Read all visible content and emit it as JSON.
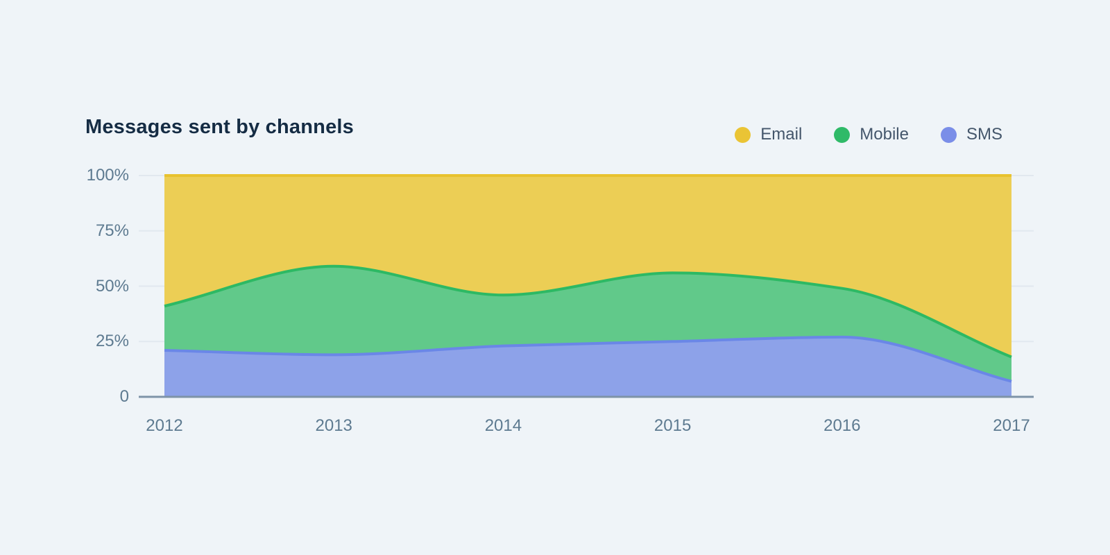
{
  "title": "Messages sent by channels",
  "legend": {
    "items": [
      {
        "label": "Email",
        "color": "#EAC435"
      },
      {
        "label": "Mobile",
        "color": "#2FBA68"
      },
      {
        "label": "SMS",
        "color": "#7A8EE8"
      }
    ]
  },
  "chart_data": {
    "type": "area",
    "stacking": "percent",
    "interpolation": "monotone",
    "title": "Messages sent by channels",
    "xlabel": "",
    "ylabel": "",
    "categories": [
      "2012",
      "2013",
      "2014",
      "2015",
      "2016",
      "2017"
    ],
    "series": [
      {
        "name": "SMS",
        "values": [
          21,
          19,
          23,
          25,
          27,
          7
        ],
        "line_color": "#6A87E7",
        "fill_color": "#8DA2E9"
      },
      {
        "name": "Mobile",
        "values": [
          20,
          40,
          23,
          31,
          22,
          11
        ],
        "line_color": "#2DB964",
        "fill_color": "#61C98A"
      },
      {
        "name": "Email",
        "values": [
          59,
          41,
          54,
          44,
          51,
          82
        ],
        "line_color": "#E8C22F",
        "fill_color": "#ECCE55"
      }
    ],
    "stack_tops": {
      "sms_top": [
        21,
        19,
        23,
        25,
        27,
        7
      ],
      "mobile_top": [
        41,
        59,
        46,
        56,
        49,
        18
      ],
      "email_top": [
        100,
        100,
        100,
        100,
        100,
        100
      ]
    },
    "ylim": [
      0,
      100
    ],
    "y_ticks": [
      {
        "value": 0,
        "label": "0"
      },
      {
        "value": 25,
        "label": "25%"
      },
      {
        "value": 50,
        "label": "50%"
      },
      {
        "value": 75,
        "label": "75%"
      },
      {
        "value": 100,
        "label": "100%"
      }
    ],
    "grid": true,
    "legend_position": "top-right"
  },
  "theme": {
    "background": "#EFF4F8",
    "title_color": "#152C44",
    "legend_text_color": "#44566B",
    "axis_label_color": "#5D7A90",
    "grid_color": "#E1E8EF",
    "axis_line_color": "#7E93A7"
  }
}
